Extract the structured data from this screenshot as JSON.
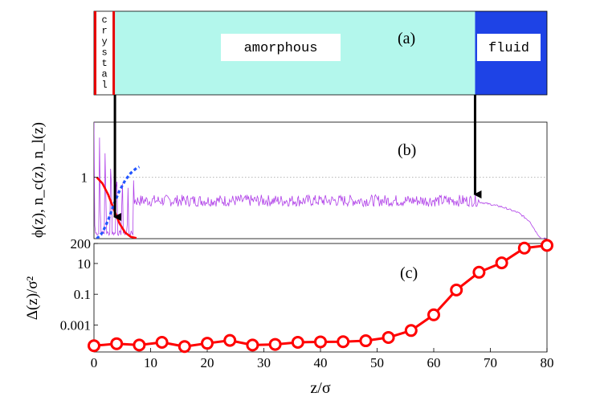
{
  "colors": {
    "crystal": "#e60000",
    "amorphous": "#b3f7ec",
    "fluid": "#1e43e6",
    "phi_line": "#b040e8",
    "nc_line": "#ff0000",
    "nl_line": "#2255ff",
    "msd": "#ff0000",
    "arrow": "#000000"
  },
  "chart_data": [
    {
      "id": "a",
      "type": "schematic",
      "panel_label": "(a)",
      "x_range": [
        0,
        80
      ],
      "regions": [
        {
          "name": "crystal",
          "label": "crystal",
          "x_start": 0,
          "x_end": 3.7
        },
        {
          "name": "amorphous",
          "label": "amorphous",
          "x_start": 3.7,
          "x_end": 67.3
        },
        {
          "name": "fluid",
          "label": "fluid",
          "x_start": 67.3,
          "x_end": 80
        }
      ],
      "arrows": [
        {
          "from_x": 3.7,
          "to_x": 3.7
        },
        {
          "from_x": 67.3,
          "to_x": 67.3
        }
      ]
    },
    {
      "id": "b",
      "type": "line",
      "panel_label": "(b)",
      "ylabel": "ϕ(z),  n_c(z),  n_l(z)",
      "y_tick_labels": [
        "1"
      ],
      "y_ticks": [
        1
      ],
      "xlim": [
        0,
        80
      ],
      "ylim": [
        0,
        1.9
      ],
      "reference_line_y": 1,
      "series": [
        {
          "name": "phi",
          "description": "density profile: large oscillations near crystal (z<6), ~0.62 ± 0.08 noise in amorphous region, decaying from 0.62 to 0 between z=68 and z=79",
          "crystal_peaks_z": [
            0,
            1,
            2,
            3,
            4,
            5,
            6
          ],
          "crystal_peaks_phi": [
            1.9,
            1.9,
            1.9,
            1.8,
            1.5,
            1.2,
            0.95
          ],
          "plateau_mean": 0.62,
          "plateau_noise": 0.08,
          "edge_x": [
            68,
            72,
            75,
            77,
            78,
            79
          ],
          "edge_y": [
            0.6,
            0.52,
            0.42,
            0.28,
            0.12,
            0.0
          ]
        },
        {
          "name": "n_c",
          "x": [
            0.5,
            1.5,
            2.5,
            3.5,
            4.5,
            5.5,
            6.5,
            7.5
          ],
          "y": [
            1.0,
            0.9,
            0.72,
            0.48,
            0.25,
            0.1,
            0.03,
            0.01
          ]
        },
        {
          "name": "n_l",
          "x": [
            0.5,
            1.5,
            2.5,
            3.5,
            4.5,
            5.5,
            6.5,
            7.5,
            8.0
          ],
          "y": [
            0.0,
            0.1,
            0.3,
            0.56,
            0.78,
            0.95,
            1.07,
            1.15,
            1.17
          ]
        }
      ]
    },
    {
      "id": "c",
      "type": "line",
      "panel_label": "(c)",
      "ylabel": "Δ(z)/σ²",
      "xlabel": "z/σ",
      "yscale": "log",
      "ylim": [
        1.77e-05,
        200
      ],
      "y_ticks": [
        0.001,
        0.1,
        10,
        200
      ],
      "y_tick_labels": [
        "0.001",
        "0.1",
        "10",
        "200"
      ],
      "xlim": [
        0,
        80
      ],
      "x_ticks": [
        0,
        10,
        20,
        30,
        40,
        50,
        60,
        70,
        80
      ],
      "x_tick_labels": [
        "0",
        "10",
        "20",
        "30",
        "40",
        "50",
        "60",
        "70",
        "80"
      ],
      "series": [
        {
          "name": "Δ(z)/σ²",
          "x": [
            0,
            4,
            8,
            12,
            16,
            20,
            24,
            28,
            32,
            36,
            40,
            44,
            48,
            52,
            56,
            60,
            64,
            68,
            72,
            76,
            80
          ],
          "y": [
            4.5e-05,
            6.1e-05,
            5e-05,
            7.5e-05,
            4e-05,
            6.5e-05,
            0.0001,
            5e-05,
            5.5e-05,
            7.5e-05,
            8e-05,
            8.2e-05,
            9.5e-05,
            0.000155,
            0.00044,
            0.0046,
            0.19,
            2.7,
            11,
            100,
            150
          ]
        }
      ]
    }
  ]
}
